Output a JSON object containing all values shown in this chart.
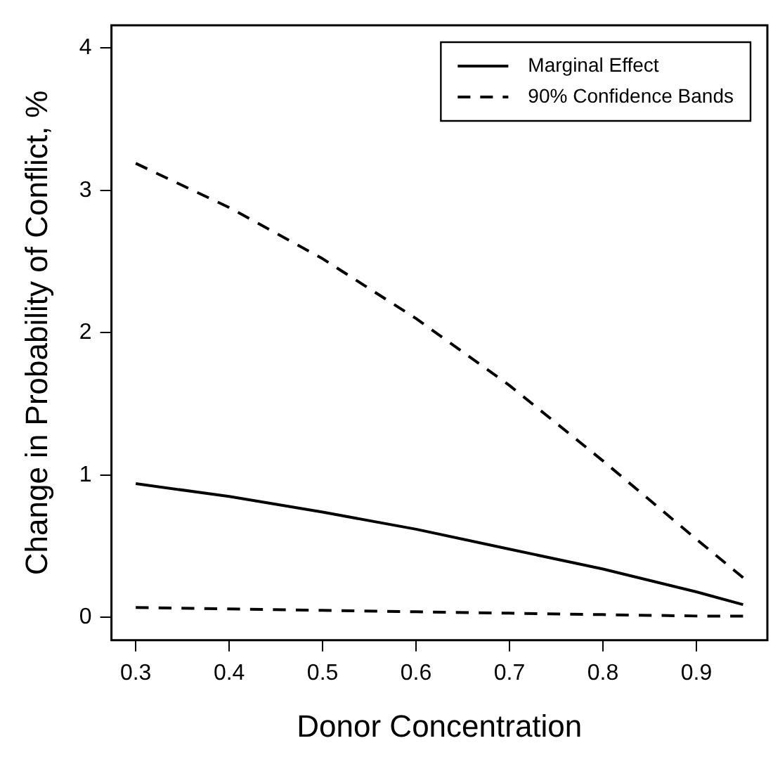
{
  "chart_data": {
    "type": "line",
    "xlabel": "Donor Concentration",
    "ylabel": "Change in Probability of Conflict, %",
    "xlim": [
      0.274,
      0.976
    ],
    "xticks": [
      0.3,
      0.4,
      0.5,
      0.6,
      0.7,
      0.8,
      0.9
    ],
    "ylim": [
      -0.16,
      4.16
    ],
    "yticks": [
      0,
      1,
      2,
      3,
      4
    ],
    "grid": false,
    "legend": "top right",
    "marker": "none",
    "x": [
      0.3,
      0.4,
      0.5,
      0.6,
      0.7,
      0.8,
      0.9,
      0.95
    ],
    "series": [
      {
        "name": "Marginal Effect",
        "color": "#000000",
        "line_style": "solid",
        "values": [
          0.94,
          0.85,
          0.74,
          0.62,
          0.48,
          0.34,
          0.18,
          0.09
        ]
      },
      {
        "name": "90% Confidence Bands",
        "color": "#000000",
        "line_style": "dashed",
        "values": [
          3.19,
          2.88,
          2.52,
          2.1,
          1.63,
          1.1,
          0.55,
          0.28
        ]
      },
      {
        "color": "#000000",
        "line_style": "dashed",
        "values": [
          0.07,
          0.06,
          0.05,
          0.04,
          0.03,
          0.02,
          0.01,
          0.01
        ]
      }
    ]
  }
}
